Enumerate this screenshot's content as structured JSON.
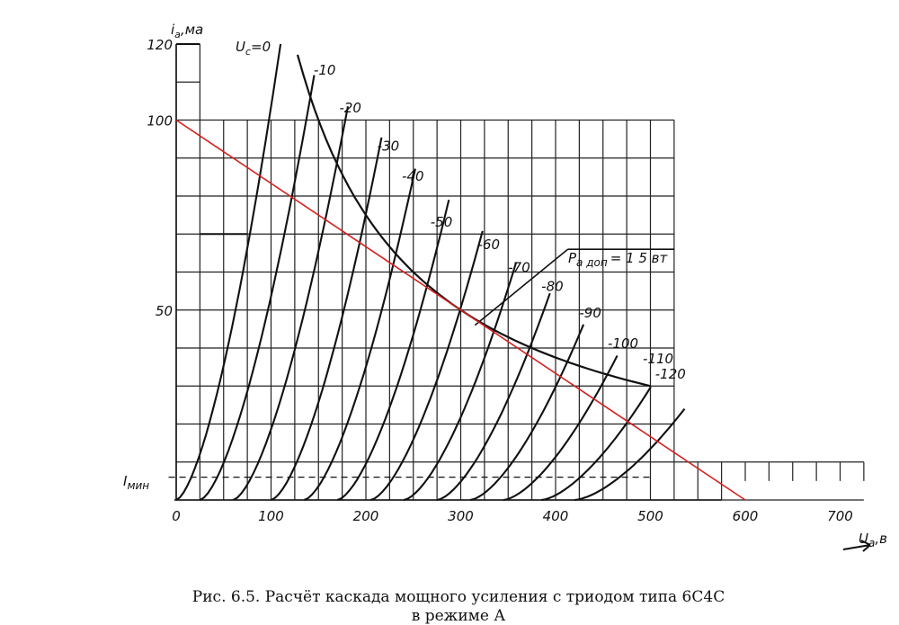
{
  "chart_data": {
    "type": "line",
    "x_label": "U",
    "x_label_sub": "а",
    "x_unit": "в",
    "y_label": "i",
    "y_label_sub": "а",
    "y_unit": "ма",
    "x_ticks": [
      "0",
      "100",
      "200",
      "300",
      "400",
      "500",
      "600",
      "700"
    ],
    "y_ticks": [
      "50",
      "100",
      "120"
    ],
    "xlim": [
      0,
      750
    ],
    "ylim": [
      0,
      120
    ],
    "grid": true,
    "grid_step_x": 25,
    "grid_step_y": 10,
    "legend_title": "U",
    "legend_title_sub": "c",
    "series": [
      {
        "name": "=0",
        "ua_at_zero_current": 0
      },
      {
        "name": "-10",
        "ua_at_zero_current": 25
      },
      {
        "name": "-20",
        "ua_at_zero_current": 60
      },
      {
        "name": "-30",
        "ua_at_zero_current": 100
      },
      {
        "name": "-40",
        "ua_at_zero_current": 135
      },
      {
        "name": "-50",
        "ua_at_zero_current": 170
      },
      {
        "name": "-60",
        "ua_at_zero_current": 205
      },
      {
        "name": "-70",
        "ua_at_zero_current": 240
      },
      {
        "name": "-80",
        "ua_at_zero_current": 275
      },
      {
        "name": "-90",
        "ua_at_zero_current": 310
      },
      {
        "name": "-100",
        "ua_at_zero_current": 345
      },
      {
        "name": "-110",
        "ua_at_zero_current": 385
      },
      {
        "name": "-120",
        "ua_at_zero_current": 420
      }
    ],
    "power_limit": {
      "label": "P",
      "label_sub": "а доп",
      "label_value": "= 1 5 вт",
      "watts": 15
    },
    "load_line": {
      "x": [
        0,
        600
      ],
      "y": [
        100,
        0
      ],
      "color": "#d42020"
    },
    "i_min": {
      "label": "I",
      "label_sub": "мин",
      "value": 6
    }
  },
  "caption": {
    "line1": "Рис. 6.5. Расчёт каскада мощного усиления с триодом типа 6С4С",
    "line2": "в режиме А"
  }
}
